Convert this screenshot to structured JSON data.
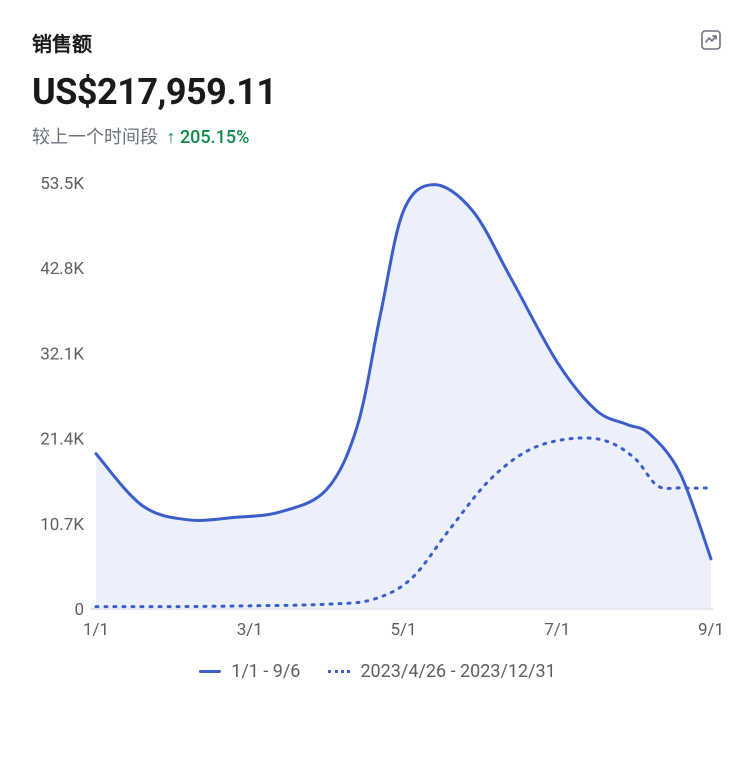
{
  "header": {
    "title": "销售额",
    "report_icon": "report-icon"
  },
  "summary": {
    "value": "US$217,959.11",
    "delta_label": "较上一个时间段",
    "delta_arrow": "↑",
    "delta_percent": "205.15%",
    "delta_color": "#0d8a4a"
  },
  "chart": {
    "type": "line",
    "background_color": "#ffffff",
    "grid_color": "#c9cccf",
    "label_color": "#5c5f62",
    "label_fontsize": 17,
    "ylim": [
      0,
      53.5
    ],
    "y_ticks": [
      {
        "v": 0,
        "label": "0"
      },
      {
        "v": 10.7,
        "label": "10.7K"
      },
      {
        "v": 21.4,
        "label": "21.4K"
      },
      {
        "v": 32.1,
        "label": "32.1K"
      },
      {
        "v": 42.8,
        "label": "42.8K"
      },
      {
        "v": 53.5,
        "label": "53.5K"
      }
    ],
    "xlim": [
      0,
      8
    ],
    "x_ticks": [
      {
        "v": 0,
        "label": "1/1"
      },
      {
        "v": 2,
        "label": "3/1"
      },
      {
        "v": 4,
        "label": "5/1"
      },
      {
        "v": 6,
        "label": "7/1"
      },
      {
        "v": 8,
        "label": "9/1"
      }
    ],
    "series": [
      {
        "name": "current",
        "label": "1/1 - 9/6",
        "color": "#3b5ecb",
        "fill_color": "#e9edf9",
        "fill_opacity": 0.85,
        "style": "solid",
        "line_width": 3,
        "points": [
          {
            "x": 0.0,
            "y": 19.5
          },
          {
            "x": 0.6,
            "y": 13.0
          },
          {
            "x": 1.2,
            "y": 11.2
          },
          {
            "x": 1.8,
            "y": 11.5
          },
          {
            "x": 2.4,
            "y": 12.2
          },
          {
            "x": 3.0,
            "y": 15.0
          },
          {
            "x": 3.4,
            "y": 23.0
          },
          {
            "x": 3.7,
            "y": 37.0
          },
          {
            "x": 4.0,
            "y": 50.0
          },
          {
            "x": 4.4,
            "y": 53.3
          },
          {
            "x": 4.9,
            "y": 50.0
          },
          {
            "x": 5.4,
            "y": 41.5
          },
          {
            "x": 6.0,
            "y": 31.0
          },
          {
            "x": 6.5,
            "y": 25.0
          },
          {
            "x": 6.9,
            "y": 23.2
          },
          {
            "x": 7.2,
            "y": 22.0
          },
          {
            "x": 7.6,
            "y": 17.0
          },
          {
            "x": 8.0,
            "y": 6.3
          }
        ]
      },
      {
        "name": "previous",
        "label": "2023/4/26 - 2023/12/31",
        "color": "#3b5ecb",
        "style": "dashed",
        "dash": "2 7",
        "line_width": 3,
        "points": [
          {
            "x": 0.0,
            "y": 0.3
          },
          {
            "x": 1.0,
            "y": 0.3
          },
          {
            "x": 2.0,
            "y": 0.4
          },
          {
            "x": 3.0,
            "y": 0.6
          },
          {
            "x": 3.6,
            "y": 1.2
          },
          {
            "x": 4.1,
            "y": 3.8
          },
          {
            "x": 4.6,
            "y": 10.0
          },
          {
            "x": 5.1,
            "y": 16.0
          },
          {
            "x": 5.6,
            "y": 19.8
          },
          {
            "x": 6.1,
            "y": 21.3
          },
          {
            "x": 6.6,
            "y": 21.2
          },
          {
            "x": 7.0,
            "y": 19.0
          },
          {
            "x": 7.3,
            "y": 15.5
          },
          {
            "x": 7.6,
            "y": 15.2
          },
          {
            "x": 8.0,
            "y": 15.2
          }
        ]
      }
    ]
  },
  "legend": {
    "items": [
      {
        "style": "solid",
        "color": "#3b5ecb",
        "label": "1/1 - 9/6"
      },
      {
        "style": "dashed",
        "color": "#3b5ecb",
        "label": "2023/4/26 - 2023/12/31"
      }
    ]
  }
}
